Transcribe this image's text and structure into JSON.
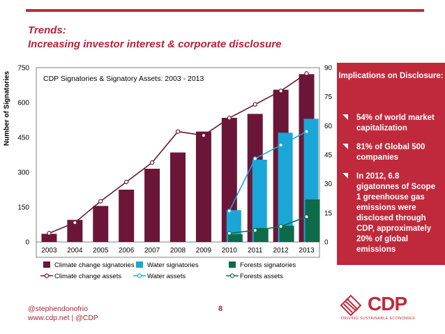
{
  "header": {
    "title": "Trends:",
    "subtitle": "Increasing investor interest & corporate disclosure"
  },
  "colors": {
    "accent": "#c0293b",
    "climate": "#6b1638",
    "water": "#1aa6d6",
    "forests": "#0e6b4a"
  },
  "chart_data": {
    "type": "bar",
    "title": "CDP Signatories & Signatory Assets: 2003 - 2013",
    "ylabel": "Number of Signatories",
    "categories": [
      "2003",
      "2004",
      "2005",
      "2006",
      "2007",
      "2008",
      "2009",
      "2010",
      "2011",
      "2012",
      "2013"
    ],
    "ylim": [
      0,
      750
    ],
    "y2lim": [
      0,
      90
    ],
    "yticks": [
      "750",
      "600",
      "450",
      "300",
      "150",
      "0"
    ],
    "y2ticks": [
      "90",
      "75",
      "60",
      "45",
      "30",
      "15",
      "0"
    ],
    "series": [
      {
        "name": "Climate change signatories",
        "kind": "bar",
        "axis": "left",
        "values": [
          35,
          95,
          155,
          225,
          315,
          385,
          475,
          534,
          551,
          655,
          722
        ]
      },
      {
        "name": "Water signatories",
        "kind": "bar",
        "axis": "left",
        "values": [
          null,
          null,
          null,
          null,
          null,
          null,
          null,
          137,
          354,
          470,
          530
        ]
      },
      {
        "name": "Forests signatories",
        "kind": "bar",
        "axis": "left",
        "values": [
          null,
          null,
          null,
          null,
          null,
          null,
          null,
          33,
          60,
          70,
          183
        ]
      },
      {
        "name": "Climate change assets",
        "kind": "line",
        "axis": "right",
        "values": [
          4.5,
          10,
          21,
          31,
          41,
          57,
          55,
          64,
          71,
          78,
          87
        ]
      },
      {
        "name": "Water assets",
        "kind": "line",
        "axis": "right",
        "values": [
          null,
          null,
          null,
          null,
          null,
          null,
          null,
          16,
          43,
          50,
          57
        ]
      },
      {
        "name": "Forests assets",
        "kind": "line",
        "axis": "right",
        "values": [
          null,
          null,
          null,
          null,
          null,
          null,
          null,
          4.5,
          6,
          8,
          13
        ]
      }
    ],
    "legend": [
      "Climate change signatories",
      "Water signatories",
      "Forests signatories",
      "Climate change assets",
      "Water assets",
      "Forests assets"
    ]
  },
  "panel": {
    "heading": "Implications on Disclosure:",
    "items": [
      "54% of world market capitalization",
      "81% of Global 500 companies",
      "In 2012, 6.8 gigatonnes of Scope 1 greenhouse gas emissions were disclosed through CDP, approximately 20% of global emissions"
    ]
  },
  "footer": {
    "handle": "@stephendonofrio",
    "links": "www.cdp.net | @CDP",
    "page_number": "8"
  },
  "logo": {
    "text": "CDP",
    "tagline": "DRIVING SUSTAINABLE ECONOMIES"
  }
}
